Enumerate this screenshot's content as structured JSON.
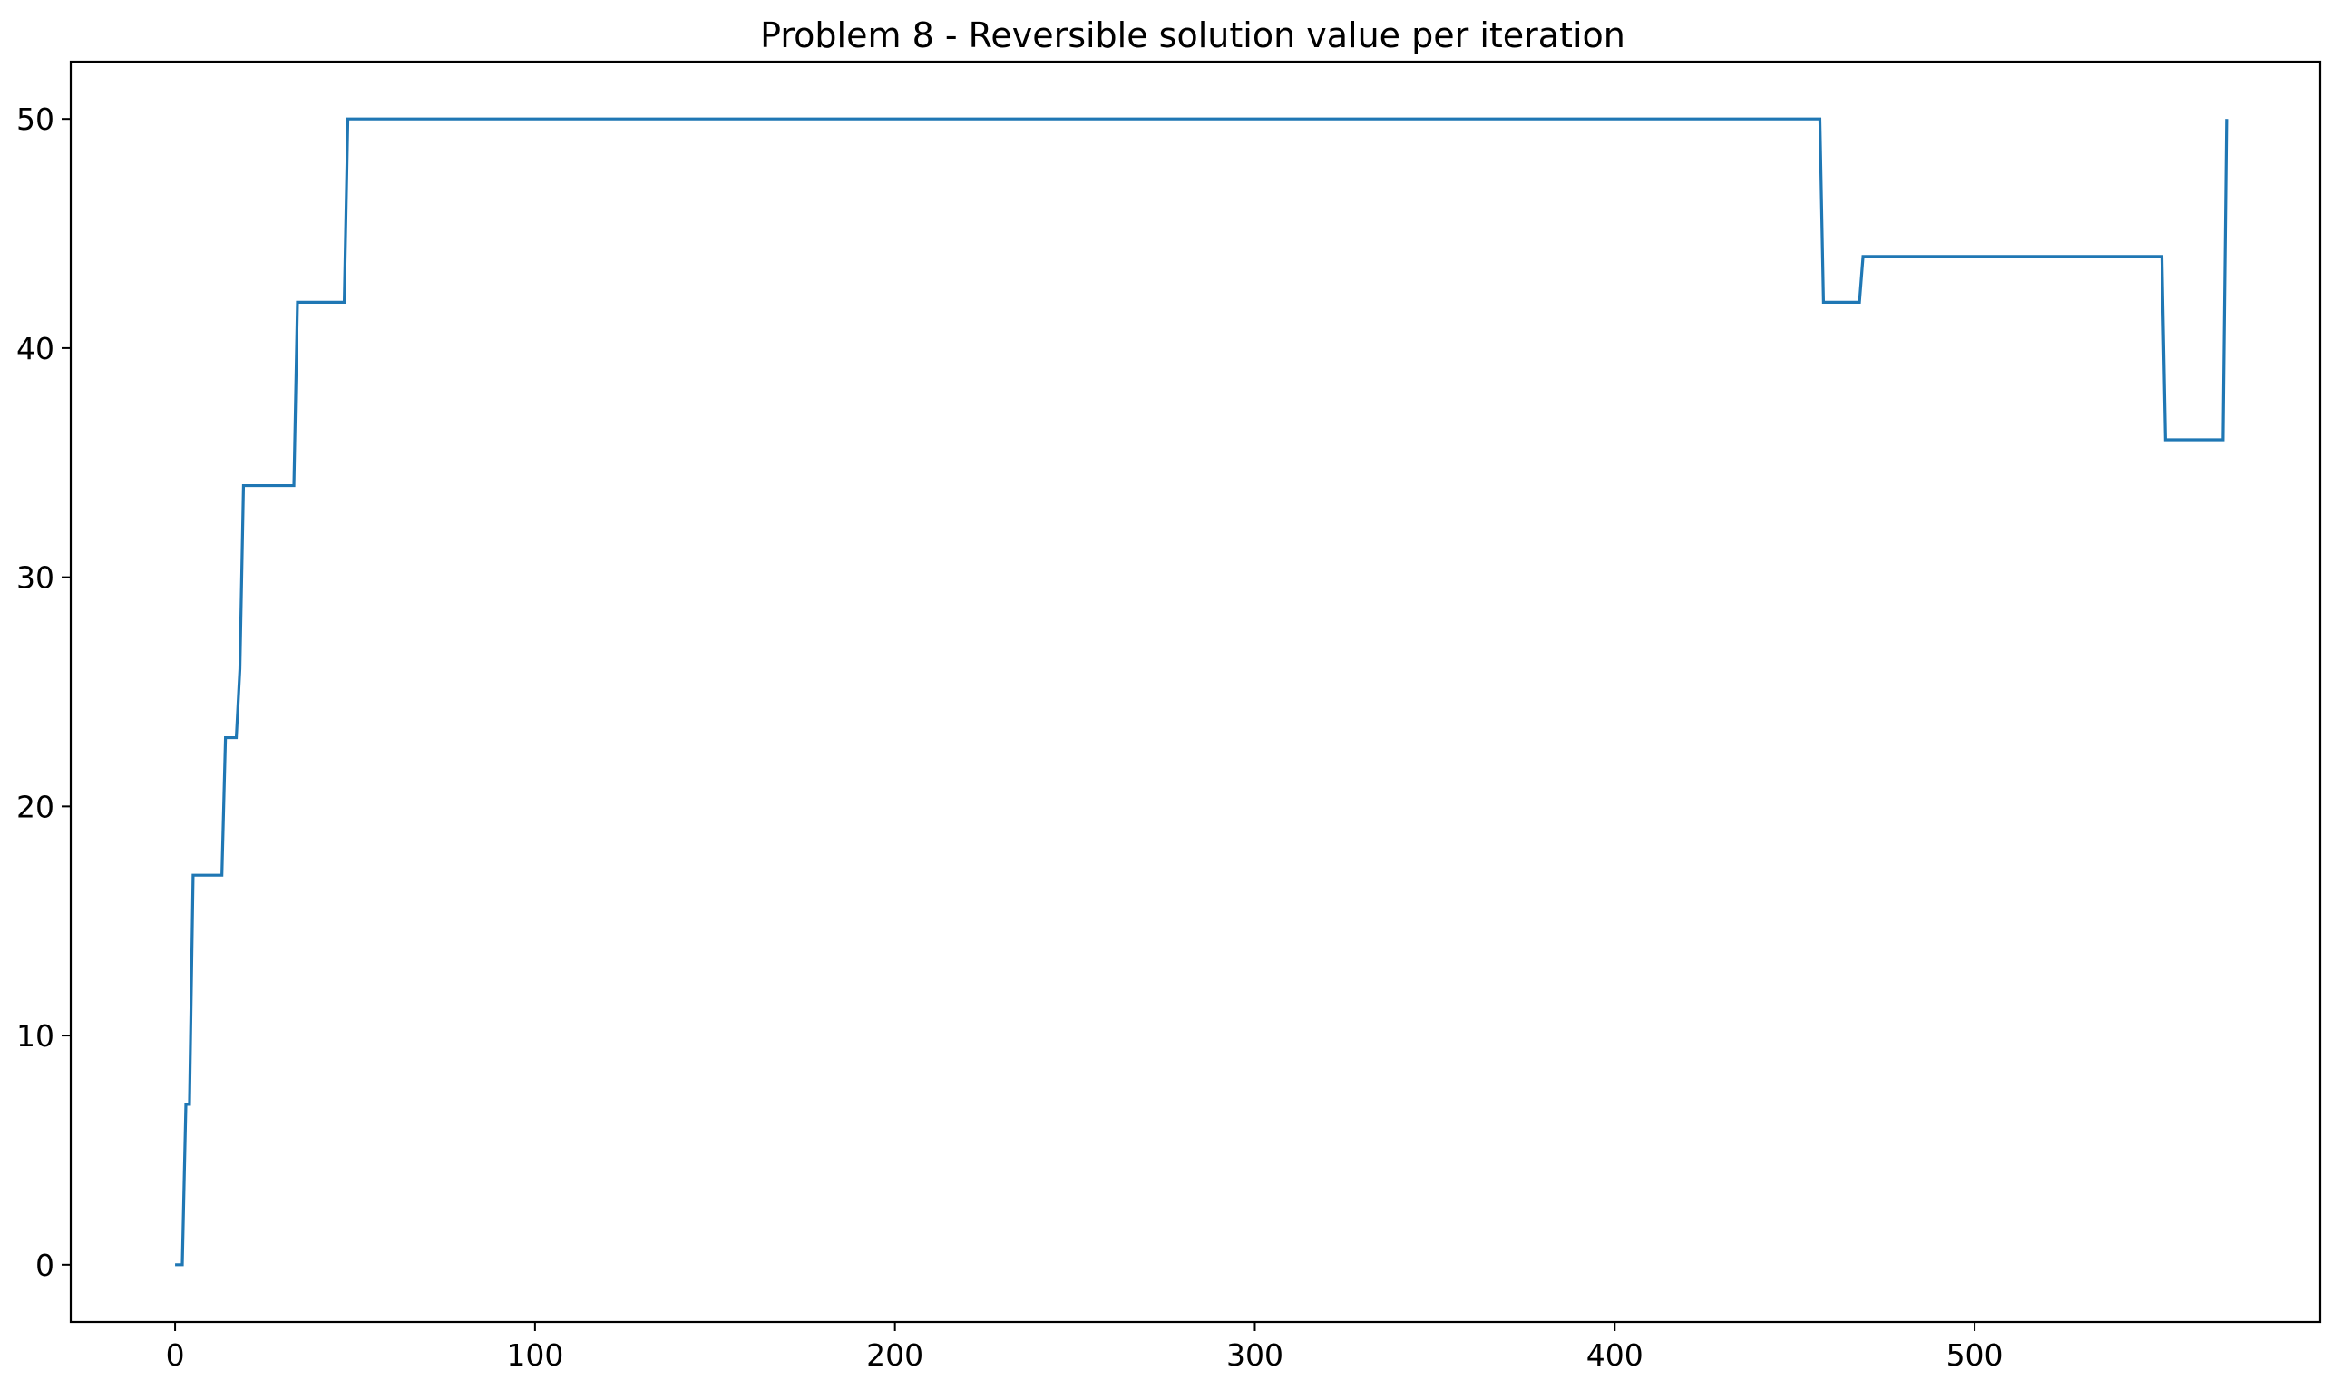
{
  "chart_data": {
    "type": "line",
    "title": "Problem 8 - Reversible solution value per iteration",
    "xlabel": "",
    "ylabel": "",
    "xlim": [
      -29,
      596
    ],
    "ylim": [
      -2.5,
      52.5
    ],
    "xticks": [
      0,
      100,
      200,
      300,
      400,
      500
    ],
    "yticks": [
      0,
      10,
      20,
      30,
      40,
      50
    ],
    "grid": false,
    "legend": "none",
    "series": [
      {
        "color": "#1f77b4",
        "x": [
          0,
          2,
          3,
          4,
          5,
          13,
          14,
          17,
          18,
          19,
          33,
          34,
          47,
          48,
          457,
          458,
          468,
          469,
          552,
          553,
          569,
          570
        ],
        "y": [
          0,
          0,
          7,
          7,
          17,
          17,
          23,
          23,
          26,
          34,
          34,
          42,
          42,
          50,
          50,
          42,
          42,
          44,
          44,
          36,
          36,
          50
        ]
      }
    ]
  }
}
